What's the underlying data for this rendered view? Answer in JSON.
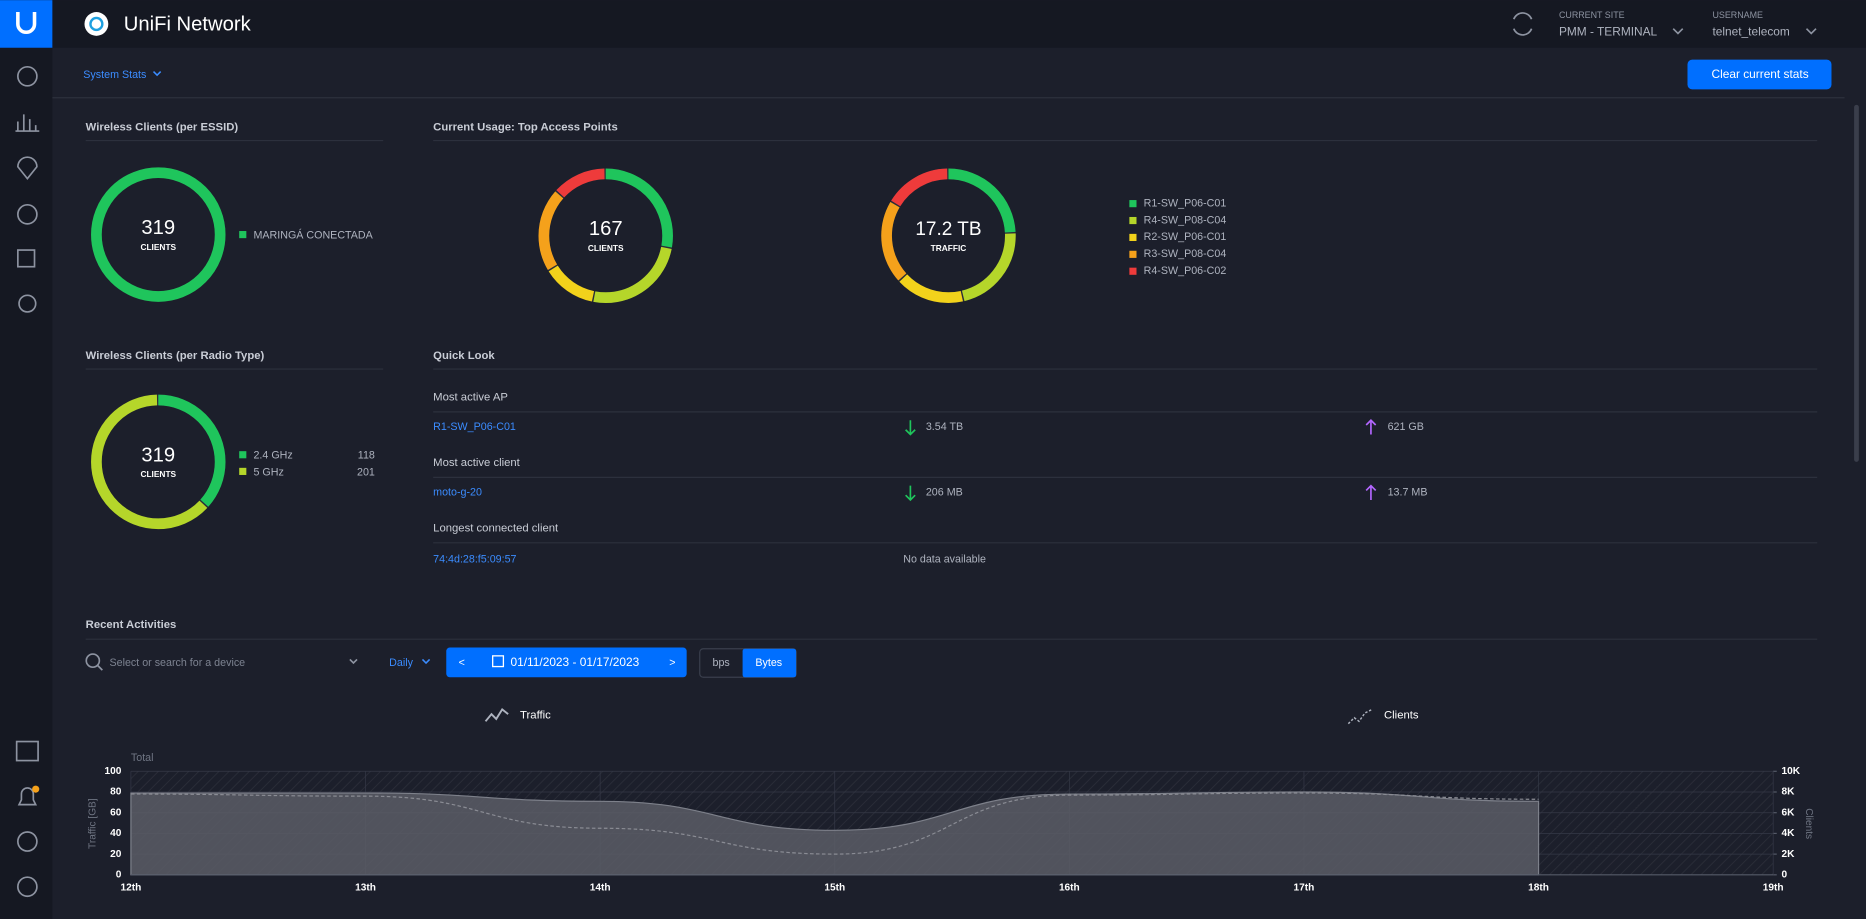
{
  "header": {
    "brand": "UniFi Network",
    "current_site_label": "CURRENT SITE",
    "current_site": "PMM - TERMINAL",
    "username_label": "USERNAME",
    "username": "telnet_telecom"
  },
  "toolbar": {
    "view": "System Stats",
    "clear_button": "Clear current stats"
  },
  "essid": {
    "title": "Wireless Clients (per ESSID)",
    "total": "319",
    "total_label": "CLIENTS",
    "series": [
      {
        "name": "MARINGÁ CONECTADA",
        "color": "#1fc55c",
        "value": 319
      }
    ]
  },
  "radio": {
    "title": "Wireless Clients (per Radio Type)",
    "total": "319",
    "total_label": "CLIENTS",
    "series": [
      {
        "name": "2.4 GHz",
        "color": "#1fc55c",
        "value": 118
      },
      {
        "name": "5 GHz",
        "color": "#b5d62a",
        "value": 201
      }
    ]
  },
  "top_aps": {
    "title": "Current Usage: Top Access Points",
    "series": [
      {
        "name": "R1-SW_P06-C01",
        "color": "#1fc55c"
      },
      {
        "name": "R4-SW_P08-C04",
        "color": "#b5d62a"
      },
      {
        "name": "R2-SW_P06-C01",
        "color": "#f2d21b"
      },
      {
        "name": "R3-SW_P08-C04",
        "color": "#f5a11b"
      },
      {
        "name": "R4-SW_P06-C02",
        "color": "#ee3b3b"
      }
    ],
    "clients": {
      "total": "167",
      "total_label": "CLIENTS",
      "values": [
        47,
        42,
        22,
        34,
        22
      ]
    },
    "traffic": {
      "total": "17.2 TB",
      "total_label": "TRAFFIC",
      "values": [
        4.2,
        3.8,
        2.9,
        3.5,
        2.8
      ]
    }
  },
  "quick_look": {
    "title": "Quick Look",
    "sections": [
      {
        "title": "Most active AP",
        "name": "R1-SW_P06-C01",
        "down": "3.54 TB",
        "up": "621 GB"
      },
      {
        "title": "Most active client",
        "name": "moto-g-20",
        "down": "206 MB",
        "up": "13.7 MB"
      },
      {
        "title": "Longest connected client",
        "name": "74:4d:28:f5:09:57",
        "note": "No data available"
      }
    ]
  },
  "activities": {
    "title": "Recent Activities",
    "search_placeholder": "Select or search for a device",
    "interval": "Daily",
    "prev": "<",
    "next": ">",
    "date_range": "01/11/2023 - 01/17/2023",
    "units": [
      "bps",
      "Bytes"
    ]
  },
  "chart_data": {
    "type": "area",
    "title": "Total",
    "ylabel": "Traffic [GB]",
    "y2label": "Clients",
    "categories": [
      "12th",
      "13th",
      "14th",
      "15th",
      "16th",
      "17th",
      "18th",
      "19th"
    ],
    "ylim": [
      0,
      100
    ],
    "yticks": [
      0,
      20,
      40,
      60,
      80,
      100
    ],
    "y2lim": [
      0,
      10000
    ],
    "y2ticks": [
      0,
      {
        "value": 2000,
        "label": "2K"
      },
      {
        "value": 4000,
        "label": "4K"
      },
      {
        "value": 6000,
        "label": "6K"
      },
      {
        "value": 8000,
        "label": "8K"
      },
      {
        "value": 10000,
        "label": "10K"
      }
    ],
    "series": [
      {
        "name": "Traffic",
        "color": "#5b5d66",
        "values": [
          79,
          79,
          71,
          43,
          78,
          80,
          71,
          null
        ]
      },
      {
        "name": "Clients",
        "color": "#8a8c94",
        "axis": "y2",
        "values": [
          7800,
          7600,
          4500,
          2000,
          7700,
          7900,
          7300,
          null
        ]
      }
    ]
  }
}
